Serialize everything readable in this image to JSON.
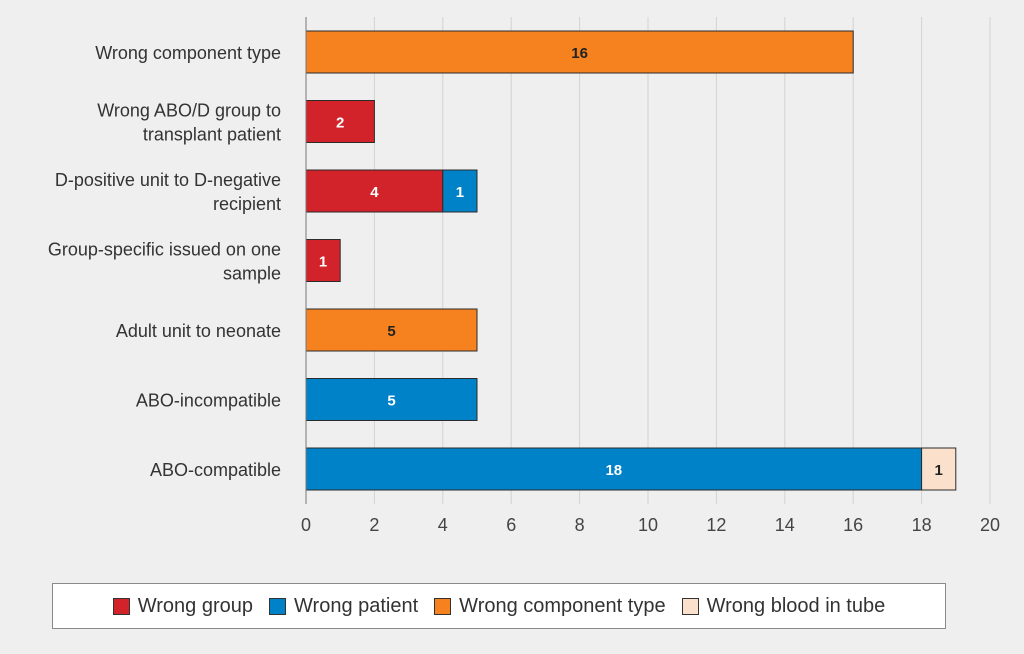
{
  "chart_data": {
    "type": "bar",
    "orientation": "horizontal",
    "stacked": true,
    "categories": [
      [
        "Wrong component type"
      ],
      [
        "Wrong ABO/D group to",
        "transplant patient"
      ],
      [
        "D-positive unit to D-negative",
        "recipient"
      ],
      [
        "Group-specific issued on one",
        "sample"
      ],
      [
        "Adult unit to neonate"
      ],
      [
        "ABO-incompatible"
      ],
      [
        "ABO-compatible"
      ]
    ],
    "series": [
      {
        "name": "Wrong group",
        "color": "#d2232a",
        "label_color": "#ffffff",
        "values": [
          0,
          2,
          4,
          1,
          0,
          0,
          0
        ]
      },
      {
        "name": "Wrong patient",
        "color": "#0082c8",
        "label_color": "#ffffff",
        "values": [
          0,
          0,
          1,
          0,
          0,
          5,
          18
        ]
      },
      {
        "name": "Wrong component type",
        "color": "#f5821f",
        "label_color": "#222222",
        "values": [
          16,
          0,
          0,
          0,
          5,
          0,
          0
        ]
      },
      {
        "name": "Wrong blood in tube",
        "color": "#fbe0cc",
        "label_color": "#222222",
        "values": [
          0,
          0,
          0,
          0,
          0,
          0,
          1
        ]
      }
    ],
    "xlim": [
      0,
      20
    ],
    "xticks": [
      0,
      2,
      4,
      6,
      8,
      10,
      12,
      14,
      16,
      18,
      20
    ],
    "grid": true,
    "legend_position": "bottom",
    "title": "",
    "xlabel": "",
    "ylabel": ""
  }
}
